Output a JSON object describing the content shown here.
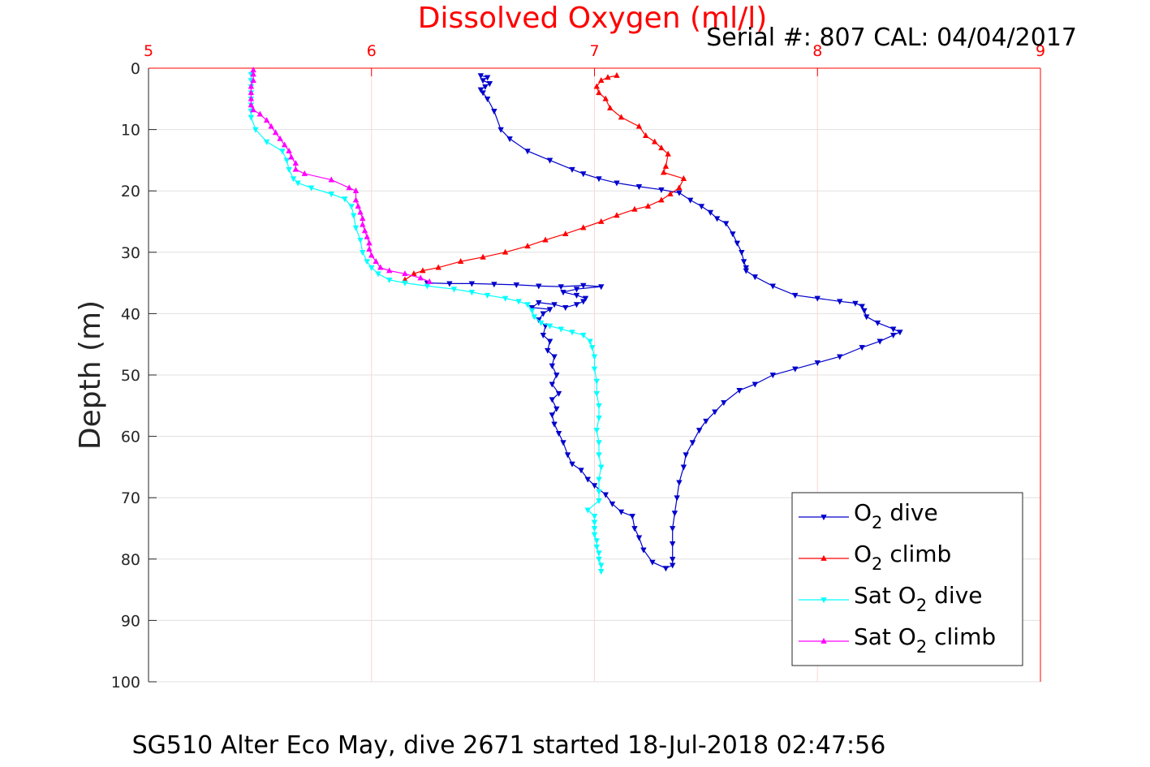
{
  "chart_data": {
    "type": "line",
    "title": "Dissolved Oxygen (ml/l)",
    "subtitle": "Serial #: 807  CAL: 04/04/2017",
    "caption": "SG510 Alter Eco May, dive 2671 started 18-Jul-2018 02:47:56",
    "xlabel": "",
    "ylabel": "Depth (m)",
    "xlim": [
      5,
      9
    ],
    "ylim": [
      0,
      100
    ],
    "y_reversed": true,
    "x_axis_position": "top",
    "xticks": [
      "5",
      "6",
      "7",
      "8",
      "9"
    ],
    "yticks": [
      "0",
      "10",
      "20",
      "30",
      "40",
      "50",
      "60",
      "70",
      "80",
      "90",
      "100"
    ],
    "grid": true,
    "legend_position": "bottom-right",
    "colors": {
      "axis_top": "#ff0000",
      "title": "#ff0000",
      "grid": "#e0e0e0"
    },
    "series": [
      {
        "name": "O2 dive",
        "label_main": "O",
        "label_sub": "2",
        "label_rest": " dive",
        "color": "#0000cc",
        "marker": "triangle-down",
        "points": [
          [
            6.49,
            1.2
          ],
          [
            6.52,
            1.5
          ],
          [
            6.5,
            2
          ],
          [
            6.53,
            2.5
          ],
          [
            6.51,
            3
          ],
          [
            6.49,
            3.5
          ],
          [
            6.5,
            4
          ],
          [
            6.52,
            5
          ],
          [
            6.55,
            7
          ],
          [
            6.58,
            10
          ],
          [
            6.62,
            11.5
          ],
          [
            6.7,
            13.5
          ],
          [
            6.8,
            15
          ],
          [
            6.9,
            16.5
          ],
          [
            6.95,
            17.2
          ],
          [
            7.02,
            18
          ],
          [
            7.1,
            18.7
          ],
          [
            7.2,
            19.3
          ],
          [
            7.3,
            19.8
          ],
          [
            7.38,
            20.3
          ],
          [
            7.43,
            21.5
          ],
          [
            7.48,
            22.5
          ],
          [
            7.52,
            23.5
          ],
          [
            7.55,
            24.5
          ],
          [
            7.59,
            25.3
          ],
          [
            7.62,
            27
          ],
          [
            7.64,
            28.5
          ],
          [
            7.66,
            30
          ],
          [
            7.67,
            31.5
          ],
          [
            7.68,
            32.5
          ],
          [
            7.68,
            33
          ],
          [
            7.72,
            34
          ],
          [
            7.8,
            35.5
          ],
          [
            7.9,
            37
          ],
          [
            8.0,
            37.5
          ],
          [
            8.1,
            38
          ],
          [
            8.17,
            38.3
          ],
          [
            8.2,
            38.8
          ],
          [
            8.21,
            39.5
          ],
          [
            8.22,
            40.5
          ],
          [
            8.27,
            41.5
          ],
          [
            8.34,
            42.5
          ],
          [
            8.37,
            43
          ],
          [
            8.34,
            43.5
          ],
          [
            8.28,
            44.5
          ],
          [
            8.2,
            45.5
          ],
          [
            8.1,
            47
          ],
          [
            8.0,
            48
          ],
          [
            7.9,
            49
          ],
          [
            7.8,
            50
          ],
          [
            7.72,
            51.5
          ],
          [
            7.65,
            52.5
          ],
          [
            7.58,
            54.5
          ],
          [
            7.54,
            56
          ],
          [
            7.5,
            57.5
          ],
          [
            7.47,
            59
          ],
          [
            7.44,
            61
          ],
          [
            7.41,
            63
          ],
          [
            7.4,
            65
          ],
          [
            7.38,
            67.5
          ],
          [
            7.37,
            70
          ],
          [
            7.36,
            72.5
          ],
          [
            7.35,
            75
          ],
          [
            7.35,
            77.5
          ],
          [
            7.35,
            80
          ],
          [
            7.35,
            81
          ],
          [
            7.32,
            81.5
          ],
          [
            7.26,
            80.5
          ],
          [
            7.22,
            78.5
          ],
          [
            7.2,
            76.5
          ],
          [
            7.18,
            75
          ],
          [
            7.17,
            73
          ],
          [
            7.12,
            72.3
          ],
          [
            7.08,
            71
          ],
          [
            7.05,
            69.5
          ],
          [
            7.0,
            68
          ],
          [
            6.97,
            67
          ],
          [
            6.94,
            65.5
          ],
          [
            6.9,
            64.5
          ],
          [
            6.88,
            63
          ],
          [
            6.86,
            61
          ],
          [
            6.84,
            59.5
          ],
          [
            6.82,
            58
          ],
          [
            6.81,
            56.5
          ],
          [
            6.83,
            55.5
          ],
          [
            6.81,
            54
          ],
          [
            6.84,
            53
          ],
          [
            6.81,
            51.5
          ],
          [
            6.83,
            50
          ],
          [
            6.81,
            48.5
          ],
          [
            6.82,
            47
          ],
          [
            6.79,
            46
          ],
          [
            6.8,
            44.5
          ],
          [
            6.77,
            43.5
          ],
          [
            6.78,
            42
          ],
          [
            6.75,
            41
          ],
          [
            6.77,
            40
          ],
          [
            6.8,
            39.3
          ],
          [
            6.72,
            39
          ],
          [
            6.75,
            38.2
          ],
          [
            6.82,
            38.5
          ],
          [
            6.87,
            39
          ],
          [
            6.92,
            38.5
          ],
          [
            6.95,
            38
          ],
          [
            6.96,
            37.5
          ],
          [
            6.92,
            37
          ],
          [
            6.86,
            36.5
          ],
          [
            6.92,
            36
          ],
          [
            7.03,
            35.6
          ],
          [
            6.95,
            35.4
          ],
          [
            6.85,
            35.6
          ],
          [
            6.75,
            35.5
          ],
          [
            6.65,
            35.3
          ],
          [
            6.55,
            35.2
          ],
          [
            6.45,
            35.1
          ],
          [
            6.35,
            35.1
          ],
          [
            6.25,
            35
          ]
        ]
      },
      {
        "name": "O2 climb",
        "label_main": "O",
        "label_sub": "2",
        "label_rest": " climb",
        "color": "#ff0000",
        "marker": "triangle-up",
        "points": [
          [
            6.15,
            34.5
          ],
          [
            6.19,
            33.5
          ],
          [
            6.23,
            33
          ],
          [
            6.3,
            32.5
          ],
          [
            6.4,
            31.5
          ],
          [
            6.5,
            30.8
          ],
          [
            6.6,
            30
          ],
          [
            6.7,
            29
          ],
          [
            6.78,
            28
          ],
          [
            6.87,
            27
          ],
          [
            6.95,
            26
          ],
          [
            7.03,
            25
          ],
          [
            7.1,
            24
          ],
          [
            7.18,
            23
          ],
          [
            7.24,
            22.5
          ],
          [
            7.3,
            21.5
          ],
          [
            7.34,
            20.5
          ],
          [
            7.38,
            19.5
          ],
          [
            7.4,
            18
          ],
          [
            7.31,
            17
          ],
          [
            7.32,
            16
          ],
          [
            7.33,
            14
          ],
          [
            7.3,
            13
          ],
          [
            7.27,
            12
          ],
          [
            7.23,
            11
          ],
          [
            7.2,
            9.5
          ],
          [
            7.12,
            8
          ],
          [
            7.07,
            6.5
          ],
          [
            7.05,
            5
          ],
          [
            7.02,
            4
          ],
          [
            7.01,
            3
          ],
          [
            7.03,
            2
          ],
          [
            7.06,
            1.5
          ],
          [
            7.1,
            1.2
          ]
        ]
      },
      {
        "name": "Sat O2 dive",
        "label_main": "Sat O",
        "label_sub": "2",
        "label_rest": " dive",
        "color": "#00ffff",
        "marker": "triangle-down",
        "points": [
          [
            5.46,
            1
          ],
          [
            5.46,
            2
          ],
          [
            5.46,
            3
          ],
          [
            5.46,
            4
          ],
          [
            5.46,
            5
          ],
          [
            5.46,
            6
          ],
          [
            5.46,
            7
          ],
          [
            5.46,
            8
          ],
          [
            5.48,
            10
          ],
          [
            5.53,
            12
          ],
          [
            5.6,
            13.5
          ],
          [
            5.62,
            15
          ],
          [
            5.63,
            16.5
          ],
          [
            5.65,
            18
          ],
          [
            5.67,
            18.7
          ],
          [
            5.73,
            19.5
          ],
          [
            5.82,
            20.5
          ],
          [
            5.88,
            21.3
          ],
          [
            5.91,
            22.5
          ],
          [
            5.92,
            24
          ],
          [
            5.93,
            26
          ],
          [
            5.95,
            28
          ],
          [
            5.96,
            30
          ],
          [
            5.98,
            31.5
          ],
          [
            6.0,
            32.5
          ],
          [
            6.03,
            33.5
          ],
          [
            6.08,
            34.5
          ],
          [
            6.15,
            35
          ],
          [
            6.25,
            35.5
          ],
          [
            6.37,
            36
          ],
          [
            6.45,
            36.5
          ],
          [
            6.52,
            37
          ],
          [
            6.6,
            37.5
          ],
          [
            6.66,
            38
          ],
          [
            6.7,
            38.5
          ],
          [
            6.72,
            39.5
          ],
          [
            6.73,
            40.5
          ],
          [
            6.76,
            41.5
          ],
          [
            6.8,
            42
          ],
          [
            6.85,
            42.5
          ],
          [
            6.9,
            43
          ],
          [
            6.95,
            43.5
          ],
          [
            6.98,
            44.5
          ],
          [
            6.99,
            45.5
          ],
          [
            7.0,
            47
          ],
          [
            7.0,
            49
          ],
          [
            7.01,
            51
          ],
          [
            7.01,
            53
          ],
          [
            7.02,
            55
          ],
          [
            7.02,
            57
          ],
          [
            7.01,
            59
          ],
          [
            7.02,
            61
          ],
          [
            7.02,
            63
          ],
          [
            7.03,
            65
          ],
          [
            7.02,
            67
          ],
          [
            7.02,
            69
          ],
          [
            7.02,
            70.5
          ],
          [
            6.97,
            72
          ],
          [
            7.0,
            73
          ],
          [
            7.0,
            74
          ],
          [
            7.0,
            75
          ],
          [
            7.0,
            76
          ],
          [
            7.01,
            77
          ],
          [
            7.01,
            78
          ],
          [
            7.02,
            79
          ],
          [
            7.02,
            80
          ],
          [
            7.03,
            81
          ],
          [
            7.03,
            82
          ]
        ]
      },
      {
        "name": "Sat O2 climb",
        "label_main": "Sat O",
        "label_sub": "2",
        "label_rest": " climb",
        "color": "#ff00ff",
        "marker": "triangle-up",
        "points": [
          [
            6.26,
            34.8
          ],
          [
            6.22,
            34.2
          ],
          [
            6.15,
            33.5
          ],
          [
            6.08,
            33
          ],
          [
            6.04,
            32.5
          ],
          [
            6.02,
            31.5
          ],
          [
            6.0,
            30.5
          ],
          [
            5.99,
            29.5
          ],
          [
            5.99,
            28.5
          ],
          [
            5.98,
            27.5
          ],
          [
            5.97,
            26.5
          ],
          [
            5.96,
            25.5
          ],
          [
            5.96,
            24.5
          ],
          [
            5.95,
            23.5
          ],
          [
            5.94,
            22.5
          ],
          [
            5.93,
            21.5
          ],
          [
            5.93,
            20
          ],
          [
            5.9,
            19.5
          ],
          [
            5.82,
            18.2
          ],
          [
            5.7,
            17.2
          ],
          [
            5.66,
            16.5
          ],
          [
            5.66,
            15.5
          ],
          [
            5.64,
            14.5
          ],
          [
            5.63,
            13.5
          ],
          [
            5.61,
            12.5
          ],
          [
            5.59,
            11.5
          ],
          [
            5.57,
            10.5
          ],
          [
            5.55,
            9.5
          ],
          [
            5.53,
            8.5
          ],
          [
            5.5,
            7.5
          ],
          [
            5.47,
            6.8
          ],
          [
            5.46,
            6
          ],
          [
            5.46,
            5
          ],
          [
            5.46,
            4
          ],
          [
            5.46,
            3
          ],
          [
            5.47,
            2
          ],
          [
            5.47,
            1
          ],
          [
            5.47,
            0.3
          ]
        ]
      }
    ]
  }
}
